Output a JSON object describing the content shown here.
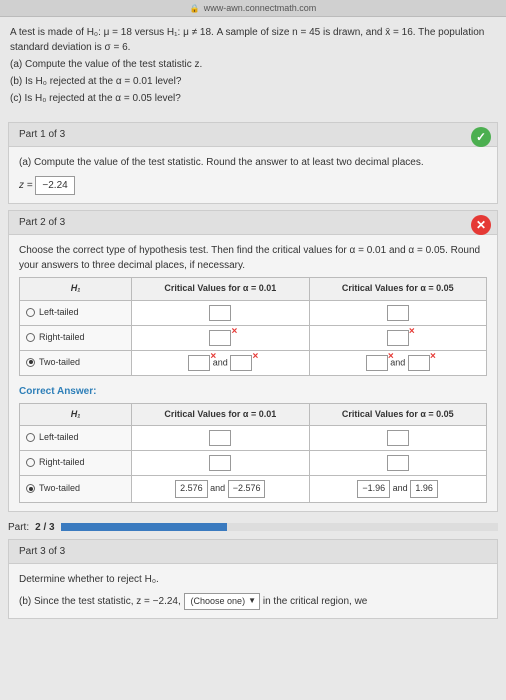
{
  "url": "www-awn.connectmath.com",
  "problem": {
    "intro": "A test is made of H₀: μ = 18 versus H₁: μ ≠ 18. A sample of size n = 45 is drawn, and x̄ = 16. The population standard deviation is σ = 6.",
    "a": "(a) Compute the value of the test statistic z.",
    "b": "(b) Is H₀ rejected at the α = 0.01 level?",
    "c": "(c) Is H₀ rejected at the α = 0.05 level?"
  },
  "part1": {
    "header": "Part 1 of 3",
    "prompt": "(a) Compute the value of the test statistic. Round the answer to at least two decimal places.",
    "z_label": "z =",
    "z_value": "−2.24"
  },
  "part2": {
    "header": "Part 2 of 3",
    "prompt": "Choose the correct type of hypothesis test. Then find the critical values for α = 0.01 and α = 0.05. Round your answers to three decimal places, if necessary.",
    "h1_col": "H₁",
    "col01": "Critical Values for α = 0.01",
    "col05": "Critical Values for α = 0.05",
    "rows": {
      "left": "Left-tailed",
      "right": "Right-tailed",
      "two": "Two-tailed"
    },
    "and": "and",
    "correct_label": "Correct Answer:",
    "ans": {
      "v01a": "2.576",
      "v01b": "−2.576",
      "v05a": "−1.96",
      "v05b": "1.96"
    }
  },
  "progress": {
    "label": "Part:",
    "value": "2 / 3",
    "percent": 38
  },
  "part3": {
    "header": "Part 3 of 3",
    "prompt": "Determine whether to reject H₀.",
    "line": "(b) Since the test statistic, z = −2.24,",
    "choose": "(Choose one)",
    "rest": "in the critical region, we"
  }
}
